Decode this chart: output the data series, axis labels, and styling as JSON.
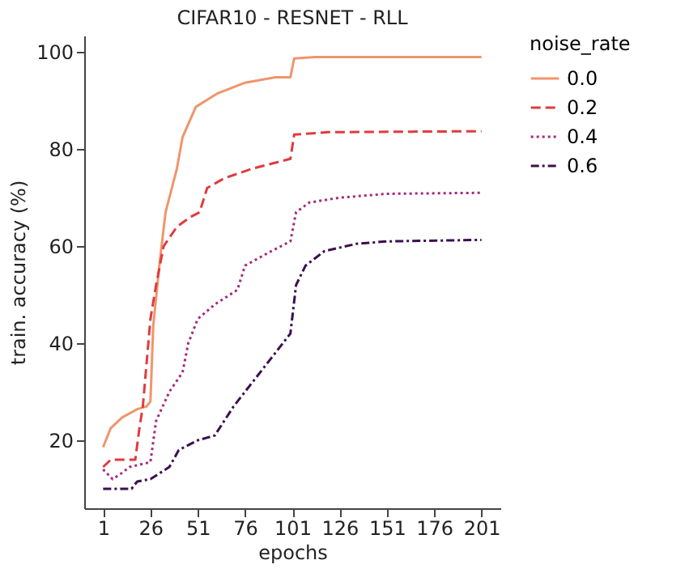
{
  "chart_data": {
    "type": "line",
    "title": "CIFAR10 - RESNET - RLL",
    "xlabel": "epochs",
    "ylabel": "train. accuracy (%)",
    "legend_title": "noise_rate",
    "legend": "right",
    "grid": false,
    "marker": "none",
    "xlim": [
      -9,
      211
    ],
    "xticks": [
      1,
      26,
      51,
      76,
      101,
      126,
      151,
      176,
      201
    ],
    "ylim": [
      6,
      103.4
    ],
    "yticks": [
      20,
      40,
      60,
      80,
      100
    ],
    "series": [
      {
        "name": "0.0",
        "color": "#f0956b",
        "line_style": "solid",
        "x": [
          1,
          5,
          11,
          19,
          24,
          26,
          27.5,
          31,
          34,
          40,
          43,
          50,
          61,
          76,
          92,
          100,
          102,
          113,
          151,
          201
        ],
        "values": [
          18.6,
          22.5,
          24.7,
          26.4,
          27,
          28,
          43.6,
          57,
          67,
          76,
          82.5,
          88.7,
          91.4,
          93.7,
          94.8,
          94.8,
          98.7,
          99,
          99,
          99
        ]
      },
      {
        "name": "0.2",
        "color": "#e03b3f",
        "line_style": "dashed",
        "x": [
          1,
          5,
          18,
          20,
          22,
          26,
          29,
          33,
          40,
          47,
          52,
          56,
          65,
          80,
          90,
          100,
          102,
          120,
          201
        ],
        "values": [
          14.5,
          16,
          16,
          22,
          27,
          45,
          52,
          60,
          64,
          66,
          67,
          72,
          74,
          76,
          77,
          78,
          83,
          83.5,
          83.7
        ]
      },
      {
        "name": "0.4",
        "color": "#a3297a",
        "line_style": "dotted",
        "x": [
          1,
          6,
          10,
          15,
          26,
          29,
          36,
          43,
          46,
          51,
          60,
          72,
          76,
          90,
          100,
          103,
          110,
          126,
          151,
          201
        ],
        "values": [
          14,
          12,
          13,
          14.5,
          15.5,
          24,
          30,
          34,
          40,
          45,
          48,
          51,
          56,
          59,
          61,
          67,
          69,
          70,
          70.8,
          71
        ]
      },
      {
        "name": "0.6",
        "color": "#3b0f4f",
        "line_style": "dashdot",
        "x": [
          1,
          16,
          19,
          26,
          36,
          41,
          51,
          60,
          70,
          80,
          90,
          100,
          103,
          108,
          118,
          135,
          151,
          201
        ],
        "values": [
          10,
          10,
          11.5,
          12,
          14.5,
          18,
          20,
          21,
          27,
          32,
          37,
          42,
          52,
          56,
          59,
          60.5,
          61,
          61.3
        ]
      }
    ]
  }
}
